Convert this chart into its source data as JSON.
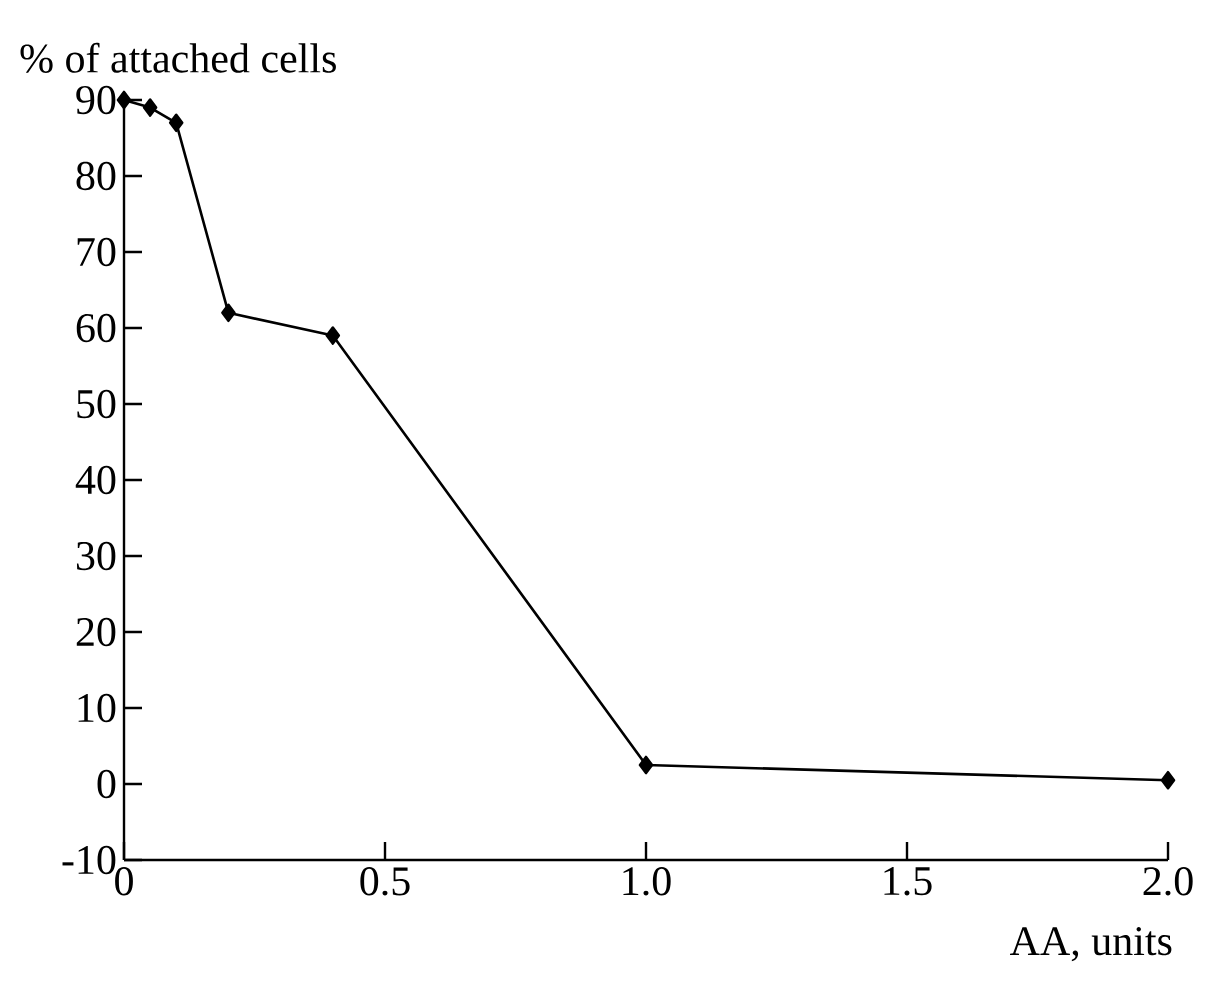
{
  "chart_data": {
    "type": "line",
    "xlabel": "AA, units",
    "ylabel": "% of attached cells",
    "x": [
      0,
      0.05,
      0.1,
      0.2,
      0.4,
      1.0,
      2.0
    ],
    "series": [
      {
        "color": "#000000",
        "values": [
          90,
          89,
          87,
          62,
          59,
          2.5,
          0.5
        ]
      }
    ],
    "xlim": [
      0,
      2
    ],
    "ylim": [
      -10,
      90
    ],
    "xticks": [
      0,
      0.5,
      {
        "value": 1,
        "label": "1.0"
      },
      1.5,
      {
        "value": 2,
        "label": "2.0"
      }
    ],
    "yticks": [
      -10,
      0,
      10,
      20,
      30,
      40,
      50,
      60,
      70,
      80,
      90
    ],
    "marker": "diamond",
    "line_style": "solid"
  }
}
